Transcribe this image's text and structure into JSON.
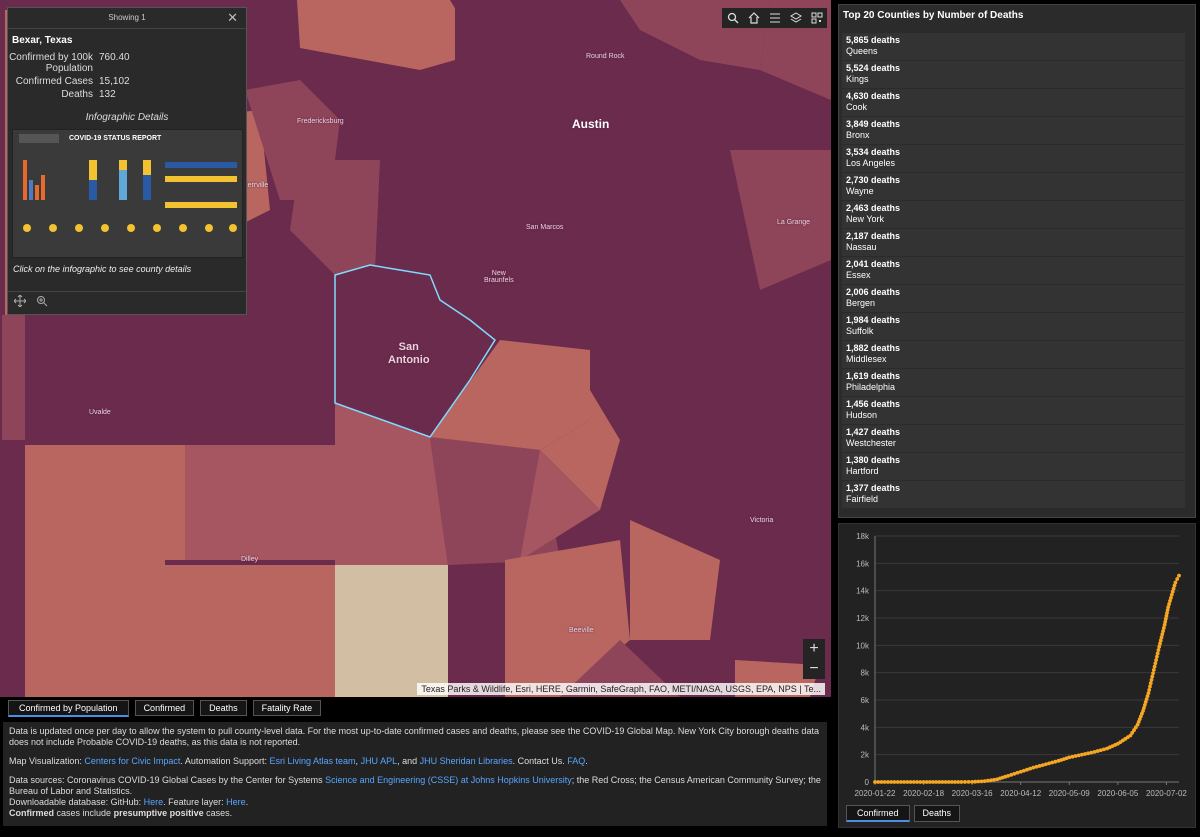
{
  "map": {
    "labels": {
      "round_rock": "Round Rock",
      "fredericksburg": "Fredericksburg",
      "austin": "Austin",
      "san_marcos": "San Marcos",
      "la_grange": "La Grange",
      "new_braunfels": "New\nBraunfels",
      "san_antonio": "San\nAntonio",
      "uvalde": "Uvalde",
      "dilley": "Dilley",
      "beeville": "Beeville",
      "victoria": "Victoria",
      "kerrville": "Kerrville"
    },
    "attribution": "Texas Parks & Wildlife, Esri, HERE, Garmin, SafeGraph, FAO, METI/NASA, USGS, EPA, NPS | Te...",
    "toolbar_icons": [
      "search-icon",
      "home-icon",
      "legend-icon",
      "layers-icon",
      "qr-icon"
    ],
    "zoom_in": "+",
    "zoom_out": "−",
    "colors": {
      "dark": "#6b2b4c",
      "mid": "#8f4559",
      "light": "#b8665f",
      "pale": "#d2bfa3"
    }
  },
  "popup": {
    "header": "Showing 1",
    "close": "✕",
    "county": "Bexar, Texas",
    "fields": [
      {
        "label": "Confirmed by 100k Population",
        "value": "760.40"
      },
      {
        "label": "Confirmed Cases",
        "value": "15,102"
      },
      {
        "label": "Deaths",
        "value": "132"
      }
    ],
    "infographic_label": "Infographic Details",
    "infographic_title": "COVID-19 STATUS REPORT",
    "hint": "Click on the infographic to see county details"
  },
  "tabs": [
    "Confirmed by Population",
    "Confirmed",
    "Deaths",
    "Fatality Rate"
  ],
  "info": {
    "p1": "Data is updated once per day to allow the system to pull county-level data. For the most up-to-date confirmed cases and deaths, please see the COVID-19 Global Map. New York City borough deaths data does not include Probable COVID-19 deaths, as this data is not reported.",
    "map_viz_label": "Map Visualization:",
    "map_viz_link": "Centers for Civic Impact",
    "automation_label": ". Automation Support:",
    "esri_link": "Esri Living Atlas team",
    "jhu_apl": "JHU APL",
    "and": ", and",
    "jhu_lib": "JHU Sheridan Libraries",
    "contact": ". Contact Us.",
    "faq": "FAQ",
    "sources_prefix": "Data sources: Coronavirus COVID-19 Global Cases by the Center for Systems",
    "sources_link": "Science and Engineering (CSSE) at Johns Hopkins University",
    "sources_suffix": "; the Red Cross; the Census American Community Survey; the Bureau of Labor and Statistics.",
    "download_prefix": "Downloadable database: GitHub:",
    "here1": "Here",
    "feature": ". Feature layer:",
    "here2": "Here",
    "confirmed_b": "Confirmed",
    "confirmed_mid": "cases include",
    "presumptive_b": "presumptive positive",
    "confirmed_end": "cases."
  },
  "list": {
    "title": "Top 20 Counties by Number of Deaths",
    "items": [
      {
        "deaths": "5,865 deaths",
        "county": "Queens"
      },
      {
        "deaths": "5,524 deaths",
        "county": "Kings"
      },
      {
        "deaths": "4,630 deaths",
        "county": "Cook"
      },
      {
        "deaths": "3,849 deaths",
        "county": "Bronx"
      },
      {
        "deaths": "3,534 deaths",
        "county": "Los Angeles"
      },
      {
        "deaths": "2,730 deaths",
        "county": "Wayne"
      },
      {
        "deaths": "2,463 deaths",
        "county": "New York"
      },
      {
        "deaths": "2,187 deaths",
        "county": "Nassau"
      },
      {
        "deaths": "2,041 deaths",
        "county": "Essex"
      },
      {
        "deaths": "2,006 deaths",
        "county": "Bergen"
      },
      {
        "deaths": "1,984 deaths",
        "county": "Suffolk"
      },
      {
        "deaths": "1,882 deaths",
        "county": "Middlesex"
      },
      {
        "deaths": "1,619 deaths",
        "county": "Philadelphia"
      },
      {
        "deaths": "1,456 deaths",
        "county": "Hudson"
      },
      {
        "deaths": "1,427 deaths",
        "county": "Westchester"
      },
      {
        "deaths": "1,380 deaths",
        "county": "Hartford"
      },
      {
        "deaths": "1,377 deaths",
        "county": "Fairfield"
      }
    ]
  },
  "chart_tabs": [
    "Confirmed",
    "Deaths"
  ],
  "chart_data": {
    "type": "line",
    "x_ticks": [
      "2020-01-22",
      "2020-02-18",
      "2020-03-16",
      "2020-04-12",
      "2020-05-09",
      "2020-06-05",
      "2020-07-02"
    ],
    "y_ticks": [
      "0",
      "2k",
      "4k",
      "6k",
      "8k",
      "10k",
      "12k",
      "14k",
      "16k",
      "18k"
    ],
    "ylim": [
      0,
      18000
    ],
    "xlim": [
      "2020-01-22",
      "2020-07-09"
    ],
    "series": [
      {
        "color": "#f5a623",
        "points": [
          [
            "2020-01-22",
            0
          ],
          [
            "2020-02-18",
            0
          ],
          [
            "2020-03-10",
            0
          ],
          [
            "2020-03-16",
            10
          ],
          [
            "2020-03-23",
            60
          ],
          [
            "2020-03-30",
            200
          ],
          [
            "2020-04-05",
            450
          ],
          [
            "2020-04-12",
            750
          ],
          [
            "2020-04-19",
            1050
          ],
          [
            "2020-04-26",
            1300
          ],
          [
            "2020-05-03",
            1550
          ],
          [
            "2020-05-09",
            1800
          ],
          [
            "2020-05-16",
            2000
          ],
          [
            "2020-05-23",
            2200
          ],
          [
            "2020-05-30",
            2450
          ],
          [
            "2020-06-05",
            2800
          ],
          [
            "2020-06-12",
            3400
          ],
          [
            "2020-06-16",
            4200
          ],
          [
            "2020-06-19",
            5200
          ],
          [
            "2020-06-22",
            6500
          ],
          [
            "2020-06-25",
            8200
          ],
          [
            "2020-06-28",
            9900
          ],
          [
            "2020-07-01",
            11500
          ],
          [
            "2020-07-03",
            12800
          ],
          [
            "2020-07-05",
            13700
          ],
          [
            "2020-07-07",
            14600
          ],
          [
            "2020-07-09",
            15102
          ]
        ]
      }
    ]
  }
}
